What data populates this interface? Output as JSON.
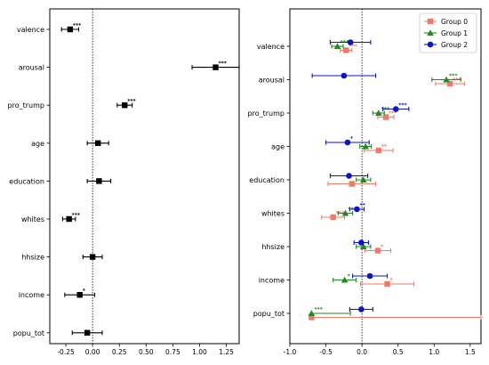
{
  "chart_data": [
    {
      "type": "scatter",
      "title": "",
      "xlabel": "",
      "ylabel": "",
      "categories": [
        "valence",
        "arousal",
        "pro_trump",
        "age",
        "education",
        "whites",
        "hhsize",
        "income",
        "popu_tot"
      ],
      "xlim": [
        -0.4,
        1.37
      ],
      "xticks": [
        "-0.25",
        "0.00",
        "0.25",
        "0.50",
        "0.75",
        "1.00",
        "1.25"
      ],
      "xtick_values": [
        -0.25,
        0,
        0.25,
        0.5,
        0.75,
        1.0,
        1.25
      ],
      "reference_line": 0,
      "legend": "none",
      "series": [
        {
          "color": "#000000",
          "marker": "square",
          "points": [
            {
              "category": "valence",
              "value": -0.21,
              "low": -0.29,
              "high": -0.13,
              "stars": "***"
            },
            {
              "category": "arousal",
              "value": 1.15,
              "low": 0.93,
              "high": 1.37,
              "stars": "***"
            },
            {
              "category": "pro_trump",
              "value": 0.3,
              "low": 0.23,
              "high": 0.37,
              "stars": "***"
            },
            {
              "category": "age",
              "value": 0.05,
              "low": -0.05,
              "high": 0.15,
              "stars": ""
            },
            {
              "category": "education",
              "value": 0.06,
              "low": -0.05,
              "high": 0.17,
              "stars": ""
            },
            {
              "category": "whites",
              "value": -0.22,
              "low": -0.28,
              "high": -0.16,
              "stars": "***"
            },
            {
              "category": "hhsize",
              "value": 0.0,
              "low": -0.09,
              "high": 0.09,
              "stars": ""
            },
            {
              "category": "income",
              "value": -0.12,
              "low": -0.26,
              "high": 0.02,
              "stars": "*"
            },
            {
              "category": "popu_tot",
              "value": -0.05,
              "low": -0.19,
              "high": 0.09,
              "stars": ""
            }
          ]
        }
      ]
    },
    {
      "type": "scatter",
      "title": "",
      "xlabel": "",
      "ylabel": "",
      "categories": [
        "valence",
        "arousal",
        "pro_trump",
        "age",
        "education",
        "whites",
        "hhsize",
        "income",
        "popu_tot"
      ],
      "xlim": [
        -1.0,
        1.65
      ],
      "xticks": [
        "-1.0",
        "-0.5",
        "0.0",
        "0.5",
        "1.0",
        "1.5"
      ],
      "xtick_values": [
        -1.0,
        -0.5,
        0.0,
        0.5,
        1.0,
        1.5
      ],
      "reference_line": 0,
      "legend": "top-right",
      "series": [
        {
          "name": "Group 0",
          "color": "#f07a6a",
          "marker": "square",
          "points": [
            {
              "category": "valence",
              "value": -0.22,
              "low": -0.3,
              "high": -0.14,
              "stars": "***"
            },
            {
              "category": "arousal",
              "value": 1.22,
              "low": 1.02,
              "high": 1.42,
              "stars": "***"
            },
            {
              "category": "pro_trump",
              "value": 0.33,
              "low": 0.22,
              "high": 0.44,
              "stars": "***"
            },
            {
              "category": "age",
              "value": 0.23,
              "low": 0.03,
              "high": 0.43,
              "stars": "**"
            },
            {
              "category": "education",
              "value": -0.14,
              "low": -0.47,
              "high": 0.19,
              "stars": ""
            },
            {
              "category": "whites",
              "value": -0.4,
              "low": -0.56,
              "high": -0.24,
              "stars": "***"
            },
            {
              "category": "hhsize",
              "value": 0.22,
              "low": 0.04,
              "high": 0.4,
              "stars": "*"
            },
            {
              "category": "income",
              "value": 0.35,
              "low": -0.02,
              "high": 0.72,
              "stars": "*"
            },
            {
              "category": "popu_tot",
              "value": -0.7,
              "low": -0.7,
              "high": 1.65,
              "stars": ""
            }
          ]
        },
        {
          "name": "Group 1",
          "color": "#1f8a1f",
          "marker": "triangle",
          "points": [
            {
              "category": "valence",
              "value": -0.34,
              "low": -0.42,
              "high": -0.26,
              "stars": "***"
            },
            {
              "category": "arousal",
              "value": 1.17,
              "low": 0.97,
              "high": 1.37,
              "stars": "***"
            },
            {
              "category": "pro_trump",
              "value": 0.23,
              "low": 0.15,
              "high": 0.31,
              "stars": "***"
            },
            {
              "category": "age",
              "value": 0.05,
              "low": -0.03,
              "high": 0.13,
              "stars": ""
            },
            {
              "category": "education",
              "value": 0.02,
              "low": -0.08,
              "high": 0.12,
              "stars": ""
            },
            {
              "category": "whites",
              "value": -0.23,
              "low": -0.33,
              "high": -0.13,
              "stars": "***"
            },
            {
              "category": "hhsize",
              "value": 0.02,
              "low": -0.08,
              "high": 0.12,
              "stars": ""
            },
            {
              "category": "income",
              "value": -0.24,
              "low": -0.4,
              "high": -0.08,
              "stars": "*"
            },
            {
              "category": "popu_tot",
              "value": -0.7,
              "low": -0.7,
              "high": -0.16,
              "stars": "***"
            }
          ]
        },
        {
          "name": "Group 2",
          "color": "#0a14c8",
          "marker": "circle",
          "points": [
            {
              "category": "valence",
              "value": -0.16,
              "low": -0.44,
              "high": 0.12,
              "stars": ""
            },
            {
              "category": "arousal",
              "value": -0.25,
              "low": -0.69,
              "high": 0.19,
              "stars": ""
            },
            {
              "category": "pro_trump",
              "value": 0.47,
              "low": 0.29,
              "high": 0.65,
              "stars": "***"
            },
            {
              "category": "age",
              "value": -0.2,
              "low": -0.5,
              "high": 0.1,
              "stars": "*"
            },
            {
              "category": "education",
              "value": -0.18,
              "low": -0.44,
              "high": 0.08,
              "stars": ""
            },
            {
              "category": "whites",
              "value": -0.07,
              "low": -0.17,
              "high": 0.03,
              "stars": "**"
            },
            {
              "category": "hhsize",
              "value": -0.01,
              "low": -0.11,
              "high": 0.09,
              "stars": ""
            },
            {
              "category": "income",
              "value": 0.11,
              "low": -0.13,
              "high": 0.35,
              "stars": ""
            },
            {
              "category": "popu_tot",
              "value": -0.01,
              "low": -0.17,
              "high": 0.15,
              "stars": ""
            }
          ]
        }
      ]
    }
  ]
}
